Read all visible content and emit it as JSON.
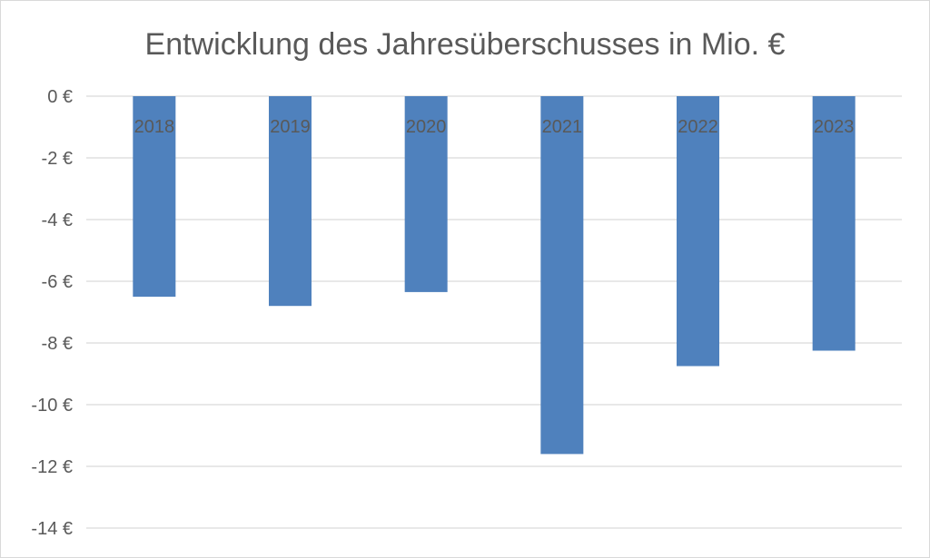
{
  "chart_data": {
    "type": "bar",
    "title": "Entwicklung des Jahresüberschusses in Mio. €",
    "xlabel": "",
    "ylabel": "",
    "categories": [
      "2018",
      "2019",
      "2020",
      "2021",
      "2022",
      "2023"
    ],
    "series": [
      {
        "values": [
          -6.5,
          -6.8,
          -6.35,
          -11.6,
          -8.75,
          -8.25
        ]
      }
    ],
    "ylim": [
      -14,
      0
    ],
    "y_ticks": [
      0,
      -2,
      -4,
      -6,
      -8,
      -10,
      -12,
      -14
    ],
    "y_tick_labels": [
      "0 €",
      "-2 €",
      "-4 €",
      "-6 €",
      "-8 €",
      "-10 €",
      "-12 €",
      "-14 €"
    ],
    "grid": true,
    "legend": "none",
    "bar_color": "#4f81bd",
    "grid_color": "#d9d9d9"
  }
}
